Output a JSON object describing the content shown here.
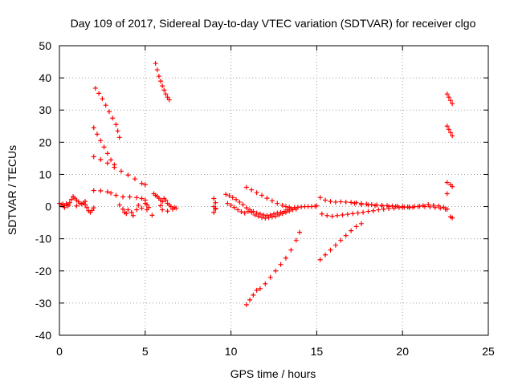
{
  "chart_data": {
    "type": "scatter",
    "title": "Day 109 of 2017, Sidereal Day-to-day VTEC variation (SDTVAR) for receiver clgo",
    "xlabel": "GPS time / hours",
    "ylabel": "SDTVAR / TECUs",
    "xlim": [
      0,
      25
    ],
    "ylim": [
      -40,
      50
    ],
    "xticks": [
      0,
      5,
      10,
      15,
      20,
      25
    ],
    "yticks": [
      -40,
      -30,
      -20,
      -10,
      0,
      10,
      20,
      30,
      40,
      50
    ],
    "grid": true,
    "marker": "+",
    "color": "#ff0000",
    "series": [
      {
        "points": [
          [
            0.0,
            1.0
          ],
          [
            0.1,
            0.5
          ],
          [
            0.2,
            0.8
          ],
          [
            0.3,
            0.3
          ],
          [
            0.4,
            0.9
          ],
          [
            0.5,
            0.6
          ],
          [
            0.6,
            1.2
          ],
          [
            0.7,
            2.2
          ],
          [
            0.8,
            3.1
          ],
          [
            0.9,
            2.6
          ],
          [
            1.0,
            2.0
          ],
          [
            1.1,
            1.5
          ],
          [
            1.2,
            1.0
          ],
          [
            1.3,
            0.8
          ],
          [
            1.4,
            1.1
          ],
          [
            1.5,
            0.6
          ],
          [
            1.6,
            -0.3
          ],
          [
            1.7,
            -1.3
          ],
          [
            1.8,
            -1.8
          ],
          [
            1.9,
            -1.2
          ],
          [
            2.0,
            -0.4
          ],
          [
            0.3,
            -0.3
          ],
          [
            0.5,
            0.2
          ],
          [
            1.0,
            0.2
          ],
          [
            1.5,
            1.6
          ]
        ]
      },
      {
        "points": [
          [
            2.1,
            36.8
          ],
          [
            2.3,
            35.2
          ],
          [
            2.5,
            33.5
          ],
          [
            2.7,
            31.5
          ],
          [
            2.9,
            29.5
          ],
          [
            3.1,
            27.5
          ],
          [
            3.3,
            25.5
          ],
          [
            3.4,
            23.5
          ],
          [
            3.5,
            21.5
          ]
        ]
      },
      {
        "points": [
          [
            2.0,
            24.5
          ],
          [
            2.2,
            22.5
          ],
          [
            2.4,
            20.5
          ],
          [
            2.6,
            18.5
          ],
          [
            2.8,
            16.5
          ],
          [
            3.0,
            14.5
          ],
          [
            3.2,
            13.0
          ]
        ]
      },
      {
        "points": [
          [
            2.0,
            15.5
          ],
          [
            2.4,
            14.6
          ],
          [
            2.8,
            13.5
          ],
          [
            3.2,
            12.2
          ],
          [
            3.6,
            11.0
          ],
          [
            4.0,
            9.8
          ],
          [
            4.4,
            8.6
          ],
          [
            4.8,
            7.2
          ],
          [
            5.0,
            6.8
          ]
        ]
      },
      {
        "points": [
          [
            2.0,
            5.0
          ],
          [
            2.4,
            4.9
          ],
          [
            2.8,
            4.6
          ],
          [
            3.0,
            4.2
          ],
          [
            3.3,
            3.5
          ],
          [
            3.7,
            3.0
          ],
          [
            4.1,
            3.0
          ],
          [
            4.5,
            2.8
          ],
          [
            4.8,
            2.5
          ],
          [
            5.0,
            2.0
          ]
        ]
      },
      {
        "points": [
          [
            3.5,
            0.5
          ],
          [
            3.7,
            -0.8
          ],
          [
            3.8,
            -1.8
          ],
          [
            3.9,
            -2.2
          ],
          [
            4.0,
            -1.0
          ],
          [
            4.2,
            -1.8
          ],
          [
            4.3,
            -2.8
          ],
          [
            4.5,
            -1.0
          ],
          [
            4.6,
            0.4
          ],
          [
            4.8,
            -0.5
          ],
          [
            5.0,
            1.0
          ],
          [
            5.1,
            0.6
          ],
          [
            5.2,
            -0.3
          ],
          [
            5.1,
            -1.0
          ],
          [
            5.4,
            -2.7
          ]
        ]
      },
      {
        "points": [
          [
            5.6,
            44.5
          ],
          [
            5.7,
            42.5
          ],
          [
            5.8,
            40.5
          ],
          [
            5.9,
            39.0
          ],
          [
            6.0,
            37.5
          ],
          [
            6.1,
            36.2
          ],
          [
            6.2,
            35.0
          ],
          [
            6.3,
            34.0
          ],
          [
            6.4,
            33.2
          ]
        ]
      },
      {
        "points": [
          [
            5.5,
            4.0
          ],
          [
            5.6,
            3.5
          ],
          [
            5.7,
            3.2
          ],
          [
            5.8,
            2.6
          ],
          [
            5.9,
            2.0
          ],
          [
            6.0,
            1.5
          ],
          [
            6.1,
            2.5
          ],
          [
            6.2,
            2.0
          ],
          [
            6.3,
            1.0
          ],
          [
            6.4,
            0.5
          ],
          [
            6.5,
            0.0
          ],
          [
            6.6,
            -0.8
          ],
          [
            6.7,
            -0.3
          ],
          [
            6.8,
            -0.5
          ],
          [
            6.0,
            -1.0
          ],
          [
            6.3,
            -1.4
          ],
          [
            5.9,
            0.3
          ]
        ]
      },
      {
        "points": [
          [
            9.0,
            2.5
          ],
          [
            9.1,
            1.2
          ],
          [
            9.0,
            0.0
          ],
          [
            9.1,
            -0.5
          ],
          [
            9.0,
            -1.8
          ],
          [
            9.1,
            -0.8
          ]
        ]
      },
      {
        "points": [
          [
            9.7,
            3.8
          ],
          [
            9.9,
            3.4
          ],
          [
            10.1,
            2.8
          ],
          [
            10.3,
            2.2
          ],
          [
            10.5,
            1.4
          ],
          [
            10.7,
            0.6
          ],
          [
            10.9,
            -0.4
          ],
          [
            11.1,
            -1.0
          ],
          [
            11.3,
            -1.5
          ],
          [
            11.5,
            -2.0
          ],
          [
            11.7,
            -2.3
          ],
          [
            11.9,
            -2.6
          ],
          [
            12.1,
            -2.8
          ],
          [
            12.3,
            -2.6
          ],
          [
            12.5,
            -2.3
          ],
          [
            12.7,
            -2.0
          ],
          [
            12.9,
            -1.8
          ],
          [
            13.1,
            -1.5
          ],
          [
            13.3,
            -1.0
          ],
          [
            13.5,
            -0.6
          ],
          [
            13.7,
            -0.3
          ],
          [
            13.9,
            -0.2
          ],
          [
            14.1,
            -0.1
          ],
          [
            14.3,
            0.0
          ],
          [
            14.5,
            0.0
          ],
          [
            14.7,
            0.0
          ],
          [
            14.9,
            0.1
          ],
          [
            15.0,
            0.2
          ]
        ]
      },
      {
        "points": [
          [
            9.8,
            1.0
          ],
          [
            10.0,
            0.4
          ],
          [
            10.2,
            -0.3
          ],
          [
            10.4,
            -1.0
          ],
          [
            10.6,
            -1.6
          ],
          [
            10.8,
            -2.0
          ],
          [
            11.0,
            -1.5
          ],
          [
            11.2,
            -1.8
          ],
          [
            11.4,
            -2.6
          ],
          [
            11.6,
            -3.0
          ],
          [
            11.8,
            -3.4
          ],
          [
            12.0,
            -3.6
          ],
          [
            12.2,
            -3.4
          ],
          [
            12.4,
            -3.2
          ],
          [
            12.6,
            -3.0
          ],
          [
            12.8,
            -2.6
          ],
          [
            13.0,
            -2.2
          ],
          [
            13.2,
            -1.8
          ],
          [
            13.4,
            -1.4
          ],
          [
            13.6,
            -1.0
          ],
          [
            13.8,
            -0.8
          ]
        ]
      },
      {
        "points": [
          [
            10.9,
            6.0
          ],
          [
            11.2,
            5.2
          ],
          [
            11.5,
            4.3
          ],
          [
            11.8,
            3.5
          ],
          [
            12.1,
            2.6
          ],
          [
            12.4,
            1.8
          ],
          [
            12.7,
            1.0
          ],
          [
            13.0,
            0.4
          ],
          [
            13.2,
            0.0
          ],
          [
            13.4,
            -0.2
          ]
        ]
      },
      {
        "points": [
          [
            10.9,
            -30.5
          ],
          [
            11.1,
            -29.0
          ],
          [
            11.3,
            -27.5
          ],
          [
            11.5,
            -26.0
          ],
          [
            11.7,
            -25.5
          ],
          [
            12.0,
            -24.0
          ],
          [
            12.3,
            -22.0
          ],
          [
            12.6,
            -20.0
          ],
          [
            12.9,
            -18.0
          ],
          [
            13.2,
            -16.0
          ],
          [
            13.5,
            -13.5
          ],
          [
            13.8,
            -10.5
          ],
          [
            14.0,
            -8.0
          ]
        ]
      },
      {
        "points": [
          [
            15.2,
            2.8
          ],
          [
            15.5,
            2.0
          ],
          [
            15.8,
            1.6
          ],
          [
            16.1,
            1.4
          ],
          [
            16.4,
            1.5
          ],
          [
            16.7,
            1.4
          ],
          [
            17.0,
            1.3
          ],
          [
            17.3,
            1.2
          ],
          [
            17.6,
            1.0
          ],
          [
            17.9,
            0.8
          ],
          [
            18.2,
            0.6
          ],
          [
            18.5,
            0.5
          ],
          [
            18.8,
            0.4
          ],
          [
            19.1,
            0.3
          ],
          [
            19.4,
            0.2
          ],
          [
            19.7,
            0.1
          ],
          [
            20.0,
            0.0
          ],
          [
            20.3,
            -0.1
          ],
          [
            20.6,
            -0.2
          ],
          [
            20.9,
            0.0
          ],
          [
            21.2,
            0.3
          ],
          [
            21.5,
            0.6
          ],
          [
            21.8,
            0.4
          ],
          [
            22.1,
            0.2
          ],
          [
            22.4,
            -0.2
          ],
          [
            22.6,
            -0.8
          ]
        ]
      },
      {
        "points": [
          [
            15.3,
            -2.3
          ],
          [
            15.6,
            -2.8
          ],
          [
            15.9,
            -3.0
          ],
          [
            16.2,
            -2.8
          ],
          [
            16.5,
            -2.6
          ],
          [
            16.8,
            -2.4
          ],
          [
            17.1,
            -2.2
          ],
          [
            17.4,
            -2.0
          ],
          [
            17.7,
            -1.8
          ],
          [
            18.0,
            -1.5
          ],
          [
            18.3,
            -1.3
          ],
          [
            18.6,
            -1.0
          ],
          [
            18.9,
            -0.8
          ],
          [
            19.2,
            -0.6
          ],
          [
            19.5,
            -0.5
          ],
          [
            19.8,
            -0.3
          ],
          [
            20.1,
            -0.2
          ],
          [
            20.4,
            -0.1
          ],
          [
            20.7,
            0.0
          ],
          [
            21.0,
            0.1
          ],
          [
            21.3,
            0.0
          ],
          [
            21.6,
            -0.1
          ],
          [
            21.9,
            -0.3
          ],
          [
            22.2,
            -0.5
          ],
          [
            22.5,
            -0.8
          ],
          [
            22.8,
            -3.2
          ],
          [
            22.9,
            -3.5
          ]
        ]
      },
      {
        "points": [
          [
            17.2,
            1.0
          ],
          [
            17.6,
            0.6
          ],
          [
            18.0,
            0.5
          ],
          [
            18.4,
            0.3
          ],
          [
            18.8,
            0.2
          ],
          [
            19.2,
            0.0
          ],
          [
            19.6,
            0.0
          ],
          [
            20.0,
            -0.2
          ],
          [
            20.4,
            -0.3
          ]
        ]
      },
      {
        "points": [
          [
            15.2,
            -16.5
          ],
          [
            15.5,
            -15.0
          ],
          [
            15.8,
            -13.5
          ],
          [
            16.1,
            -12.0
          ],
          [
            16.4,
            -10.5
          ],
          [
            16.7,
            -9.0
          ],
          [
            17.0,
            -7.5
          ],
          [
            17.3,
            -6.2
          ],
          [
            17.6,
            -5.3
          ]
        ]
      },
      {
        "points": [
          [
            22.6,
            35.0
          ],
          [
            22.7,
            34.0
          ],
          [
            22.8,
            33.0
          ],
          [
            22.9,
            32.0
          ],
          [
            22.6,
            25.0
          ],
          [
            22.7,
            24.0
          ],
          [
            22.8,
            23.0
          ],
          [
            22.9,
            22.0
          ],
          [
            22.6,
            7.5
          ],
          [
            22.8,
            6.8
          ],
          [
            22.9,
            6.2
          ],
          [
            22.6,
            4.0
          ]
        ]
      }
    ]
  }
}
